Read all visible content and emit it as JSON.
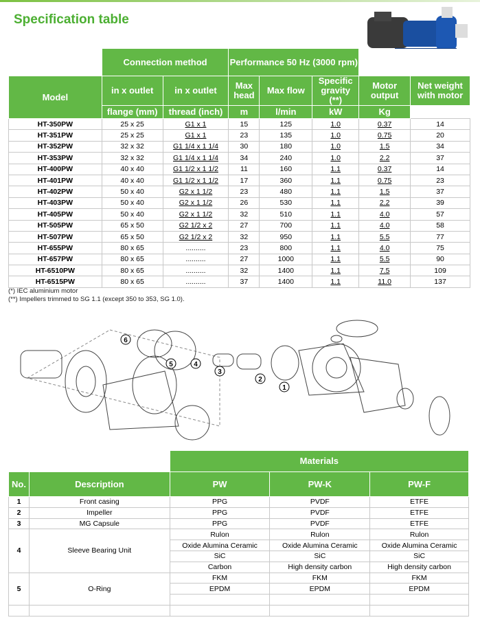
{
  "title": "Specification table",
  "spec": {
    "group_headers": {
      "connection": "Connection method",
      "performance": "Performance 50 Hz (3000 rpm)"
    },
    "headers": {
      "model": "Model",
      "flange_top": "in x outlet",
      "thread_top": "in x outlet",
      "head_top": "Max head",
      "flow_top": "Max flow",
      "sg_top": "Specific gravity",
      "sg_unit": "(**)",
      "motor_top": "Motor output",
      "weight_top": "Net weight with motor",
      "flange_unit": "flange (mm)",
      "thread_unit": "thread (inch)",
      "head_unit": "m",
      "flow_unit": "l/min",
      "motor_unit": "kW",
      "weight_unit": "Kg"
    },
    "rows": [
      [
        "HT-350PW",
        "25 x 25",
        "G1 x 1",
        "15",
        "125",
        "1.0",
        "0.37",
        "14"
      ],
      [
        "HT-351PW",
        "25 x 25",
        "G1 x 1",
        "23",
        "135",
        "1.0",
        "0.75",
        "20"
      ],
      [
        "HT-352PW",
        "32 x 32",
        "G1 1/4 x 1 1/4",
        "30",
        "180",
        "1.0",
        "1.5",
        "34"
      ],
      [
        "HT-353PW",
        "32 x 32",
        "G1 1/4 x 1 1/4",
        "34",
        "240",
        "1.0",
        "2.2",
        "37"
      ],
      [
        "HT-400PW",
        "40 x 40",
        "G1 1/2 x 1 1/2",
        "11",
        "160",
        "1.1",
        "0.37",
        "14"
      ],
      [
        "HT-401PW",
        "40 x 40",
        "G1 1/2 x 1 1/2",
        "17",
        "360",
        "1.1",
        "0.75",
        "23"
      ],
      [
        "HT-402PW",
        "50 x 40",
        "G2 x 1 1/2",
        "23",
        "480",
        "1.1",
        "1.5",
        "37"
      ],
      [
        "HT-403PW",
        "50 x 40",
        "G2 x 1 1/2",
        "26",
        "530",
        "1.1",
        "2.2",
        "39"
      ],
      [
        "HT-405PW",
        "50 x 40",
        "G2 x 1 1/2",
        "32",
        "510",
        "1.1",
        "4.0",
        "57"
      ],
      [
        "HT-505PW",
        "65 x 50",
        "G2 1/2 x 2",
        "27",
        "700",
        "1.1",
        "4.0",
        "58"
      ],
      [
        "HT-507PW",
        "65 x 50",
        "G2 1/2 x 2",
        "32",
        "950",
        "1.1",
        "5.5",
        "77"
      ],
      [
        "HT-655PW",
        "80 x 65",
        "..........",
        "23",
        "800",
        "1.1",
        "4.0",
        "75"
      ],
      [
        "HT-657PW",
        "80 x 65",
        "..........",
        "27",
        "1000",
        "1.1",
        "5.5",
        "90"
      ],
      [
        "HT-6510PW",
        "80 x 65",
        "..........",
        "32",
        "1400",
        "1.1",
        "7.5",
        "109"
      ],
      [
        "HT-6515PW",
        "80 x 65",
        "..........",
        "37",
        "1400",
        "1.1",
        "11.0",
        "137"
      ]
    ]
  },
  "notes": [
    "(*) IEC aluminium motor",
    "(**) Impellers trimmed to SG 1.1 (except 350 to 353, SG 1.0)."
  ],
  "diagram": {
    "labels": [
      "1",
      "2",
      "3",
      "4",
      "5",
      "6"
    ]
  },
  "materials": {
    "group_header": "Materials",
    "headers": {
      "no": "No.",
      "description": "Description",
      "pw": "PW",
      "pwk": "PW-K",
      "pwf": "PW-F"
    },
    "rows": [
      {
        "no": "1",
        "description": "Front casing",
        "values": [
          [
            "PPG",
            "PVDF",
            "ETFE"
          ]
        ]
      },
      {
        "no": "2",
        "description": "Impeller",
        "values": [
          [
            "PPG",
            "PVDF",
            "ETFE"
          ]
        ]
      },
      {
        "no": "3",
        "description": "MG Capsule",
        "values": [
          [
            "PPG",
            "PVDF",
            "ETFE"
          ]
        ]
      },
      {
        "no": "4",
        "description": "Sleeve Bearing Unit",
        "values": [
          [
            "Rulon",
            "Rulon",
            "Rulon"
          ],
          [
            "Oxide Alumina Ceramic",
            "Oxide Alumina Ceramic",
            "Oxide Alumina Ceramic"
          ],
          [
            "SiC",
            "SiC",
            "SiC"
          ],
          [
            "Carbon",
            "High density carbon",
            "High density carbon"
          ]
        ]
      },
      {
        "no": "5",
        "description": "O-Ring",
        "values": [
          [
            "FKM",
            "FKM",
            "FKM"
          ],
          [
            "EPDM",
            "EPDM",
            "EPDM"
          ],
          [
            "",
            "",
            ""
          ]
        ]
      }
    ]
  },
  "colors": {
    "header_green": "#62b846",
    "title_green": "#4caf32",
    "pump_blue": "#1a4fa0"
  }
}
